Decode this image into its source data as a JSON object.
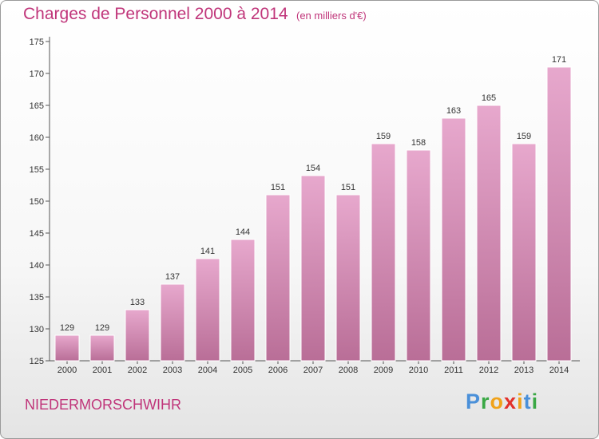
{
  "header": {
    "title": "Charges de Personnel 2000 à 2014",
    "unit": "(en milliers d'€)"
  },
  "footer": {
    "town": "NIEDERMORSCHWIHR",
    "logo_letters": [
      "P",
      "r",
      "o",
      "x",
      "i",
      "t",
      "i"
    ],
    "logo_colors": [
      "#4a90d9",
      "#3aa845",
      "#f0a21a",
      "#e2302a",
      "#f0a21a",
      "#4a90d9",
      "#3aa845"
    ]
  },
  "chart_data": {
    "type": "bar",
    "title": "Charges de Personnel 2000 à 2014",
    "subtitle": "(en milliers d'€)",
    "xlabel": "",
    "ylabel": "",
    "categories": [
      "2000",
      "2001",
      "2002",
      "2003",
      "2004",
      "2005",
      "2006",
      "2007",
      "2008",
      "2009",
      "2010",
      "2011",
      "2012",
      "2013",
      "2014"
    ],
    "values": [
      129,
      129,
      133,
      137,
      141,
      144,
      151,
      154,
      151,
      159,
      158,
      163,
      165,
      159,
      171
    ],
    "ylim": [
      125,
      175
    ],
    "yticks": [
      125,
      130,
      135,
      140,
      145,
      150,
      155,
      160,
      165,
      170,
      175
    ],
    "grid": false,
    "bar_color": "#d98ab5",
    "text_color": "#c0357a"
  }
}
